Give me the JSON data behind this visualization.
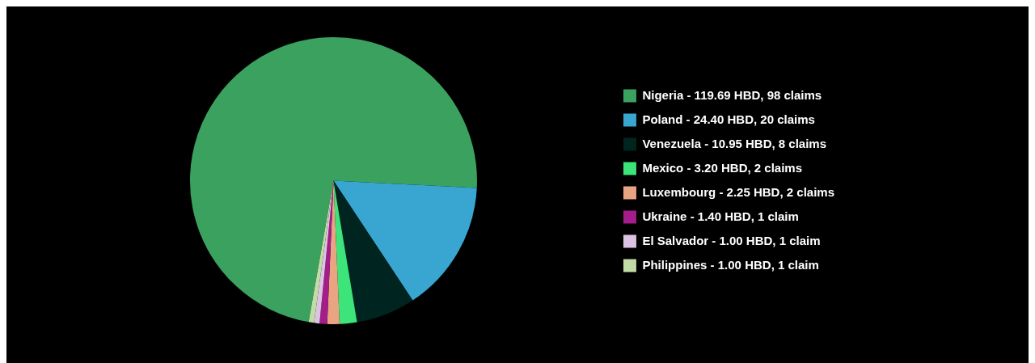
{
  "chart_data": {
    "type": "pie",
    "categories": [
      "Nigeria - 119.69 HBD, 98 claims",
      "Poland - 24.40 HBD, 20 claims",
      "Venezuela - 10.95 HBD, 8 claims",
      "Mexico - 3.20 HBD, 2 claims",
      "Luxembourg - 2.25 HBD, 2 claims",
      "Ukraine - 1.40 HBD, 1 claim",
      "El Salvador - 1.00 HBD, 1 claim",
      "Philippines - 1.00 HBD, 1 claim"
    ],
    "values": [
      119.69,
      24.4,
      10.95,
      3.2,
      2.25,
      1.4,
      1.0,
      1.0
    ],
    "colors": [
      "#3ba15f",
      "#38a6d0",
      "#002420",
      "#3ce47a",
      "#e9a582",
      "#a51d8a",
      "#dcc3e3",
      "#c1dca4"
    ],
    "legend": "right"
  }
}
